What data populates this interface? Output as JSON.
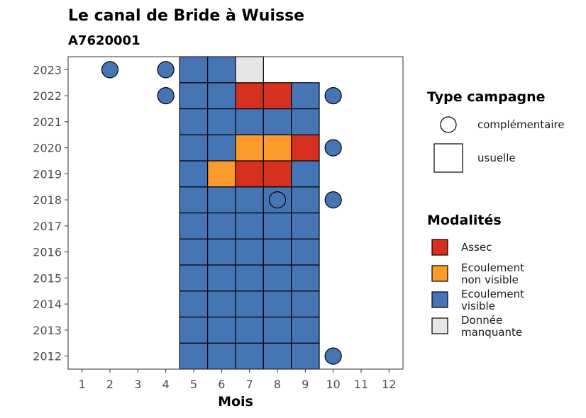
{
  "chart_data": {
    "type": "heatmap",
    "title": "Le canal de Bride à Wuisse",
    "subtitle": "A7620001",
    "xlabel": "Mois",
    "ylabel": "",
    "x_ticks": [
      1,
      2,
      3,
      4,
      5,
      6,
      7,
      8,
      9,
      10,
      11,
      12
    ],
    "y_ticks": [
      2012,
      2013,
      2014,
      2015,
      2016,
      2017,
      2018,
      2019,
      2020,
      2021,
      2022,
      2023
    ],
    "xlim": [
      0.5,
      12.5
    ],
    "ylim": [
      2011.5,
      2023.5
    ],
    "modalities": [
      {
        "key": "assec",
        "label": "Assec",
        "color": "#d7301f"
      },
      {
        "key": "non_visible",
        "label": "Ecoulement non visible",
        "color": "#fd9a2c"
      },
      {
        "key": "visible",
        "label": "Ecoulement visible",
        "color": "#4575b4"
      },
      {
        "key": "manquante",
        "label": "Donnée manquante",
        "color": "#e6e6e6"
      }
    ],
    "campaign_types": [
      {
        "key": "complementaire",
        "label": "complémentaire",
        "shape": "circle"
      },
      {
        "key": "usuelle",
        "label": "usuelle",
        "shape": "square"
      }
    ],
    "legend_titles": {
      "campaign": "Type campagne",
      "modality": "Modalités"
    },
    "legend_position": "right",
    "observations": [
      {
        "year": 2012,
        "month": 5,
        "type": "usuelle",
        "value": "visible"
      },
      {
        "year": 2012,
        "month": 6,
        "type": "usuelle",
        "value": "visible"
      },
      {
        "year": 2012,
        "month": 7,
        "type": "usuelle",
        "value": "visible"
      },
      {
        "year": 2012,
        "month": 8,
        "type": "usuelle",
        "value": "visible"
      },
      {
        "year": 2012,
        "month": 9,
        "type": "usuelle",
        "value": "visible"
      },
      {
        "year": 2012,
        "month": 10,
        "type": "complementaire",
        "value": "visible"
      },
      {
        "year": 2013,
        "month": 5,
        "type": "usuelle",
        "value": "visible"
      },
      {
        "year": 2013,
        "month": 6,
        "type": "usuelle",
        "value": "visible"
      },
      {
        "year": 2013,
        "month": 7,
        "type": "usuelle",
        "value": "visible"
      },
      {
        "year": 2013,
        "month": 8,
        "type": "usuelle",
        "value": "visible"
      },
      {
        "year": 2013,
        "month": 9,
        "type": "usuelle",
        "value": "visible"
      },
      {
        "year": 2014,
        "month": 5,
        "type": "usuelle",
        "value": "visible"
      },
      {
        "year": 2014,
        "month": 6,
        "type": "usuelle",
        "value": "visible"
      },
      {
        "year": 2014,
        "month": 7,
        "type": "usuelle",
        "value": "visible"
      },
      {
        "year": 2014,
        "month": 8,
        "type": "usuelle",
        "value": "visible"
      },
      {
        "year": 2014,
        "month": 9,
        "type": "usuelle",
        "value": "visible"
      },
      {
        "year": 2015,
        "month": 5,
        "type": "usuelle",
        "value": "visible"
      },
      {
        "year": 2015,
        "month": 6,
        "type": "usuelle",
        "value": "visible"
      },
      {
        "year": 2015,
        "month": 7,
        "type": "usuelle",
        "value": "visible"
      },
      {
        "year": 2015,
        "month": 8,
        "type": "usuelle",
        "value": "visible"
      },
      {
        "year": 2015,
        "month": 9,
        "type": "usuelle",
        "value": "visible"
      },
      {
        "year": 2016,
        "month": 5,
        "type": "usuelle",
        "value": "visible"
      },
      {
        "year": 2016,
        "month": 6,
        "type": "usuelle",
        "value": "visible"
      },
      {
        "year": 2016,
        "month": 7,
        "type": "usuelle",
        "value": "visible"
      },
      {
        "year": 2016,
        "month": 8,
        "type": "usuelle",
        "value": "visible"
      },
      {
        "year": 2016,
        "month": 9,
        "type": "usuelle",
        "value": "visible"
      },
      {
        "year": 2017,
        "month": 5,
        "type": "usuelle",
        "value": "visible"
      },
      {
        "year": 2017,
        "month": 6,
        "type": "usuelle",
        "value": "visible"
      },
      {
        "year": 2017,
        "month": 7,
        "type": "usuelle",
        "value": "visible"
      },
      {
        "year": 2017,
        "month": 8,
        "type": "usuelle",
        "value": "visible"
      },
      {
        "year": 2017,
        "month": 9,
        "type": "usuelle",
        "value": "visible"
      },
      {
        "year": 2018,
        "month": 5,
        "type": "usuelle",
        "value": "visible"
      },
      {
        "year": 2018,
        "month": 6,
        "type": "usuelle",
        "value": "visible"
      },
      {
        "year": 2018,
        "month": 7,
        "type": "usuelle",
        "value": "visible"
      },
      {
        "year": 2018,
        "month": 8,
        "type": "usuelle",
        "value": "visible"
      },
      {
        "year": 2018,
        "month": 8,
        "type": "complementaire",
        "value": "visible"
      },
      {
        "year": 2018,
        "month": 9,
        "type": "usuelle",
        "value": "visible"
      },
      {
        "year": 2018,
        "month": 10,
        "type": "complementaire",
        "value": "visible"
      },
      {
        "year": 2019,
        "month": 5,
        "type": "usuelle",
        "value": "visible"
      },
      {
        "year": 2019,
        "month": 6,
        "type": "usuelle",
        "value": "non_visible"
      },
      {
        "year": 2019,
        "month": 7,
        "type": "usuelle",
        "value": "assec"
      },
      {
        "year": 2019,
        "month": 8,
        "type": "usuelle",
        "value": "assec"
      },
      {
        "year": 2019,
        "month": 9,
        "type": "usuelle",
        "value": "visible"
      },
      {
        "year": 2020,
        "month": 5,
        "type": "usuelle",
        "value": "visible"
      },
      {
        "year": 2020,
        "month": 6,
        "type": "usuelle",
        "value": "visible"
      },
      {
        "year": 2020,
        "month": 7,
        "type": "usuelle",
        "value": "non_visible"
      },
      {
        "year": 2020,
        "month": 8,
        "type": "usuelle",
        "value": "non_visible"
      },
      {
        "year": 2020,
        "month": 9,
        "type": "usuelle",
        "value": "assec"
      },
      {
        "year": 2020,
        "month": 10,
        "type": "complementaire",
        "value": "visible"
      },
      {
        "year": 2021,
        "month": 5,
        "type": "usuelle",
        "value": "visible"
      },
      {
        "year": 2021,
        "month": 6,
        "type": "usuelle",
        "value": "visible"
      },
      {
        "year": 2021,
        "month": 7,
        "type": "usuelle",
        "value": "visible"
      },
      {
        "year": 2021,
        "month": 8,
        "type": "usuelle",
        "value": "visible"
      },
      {
        "year": 2021,
        "month": 9,
        "type": "usuelle",
        "value": "visible"
      },
      {
        "year": 2022,
        "month": 4,
        "type": "complementaire",
        "value": "visible"
      },
      {
        "year": 2022,
        "month": 5,
        "type": "usuelle",
        "value": "visible"
      },
      {
        "year": 2022,
        "month": 6,
        "type": "usuelle",
        "value": "visible"
      },
      {
        "year": 2022,
        "month": 7,
        "type": "usuelle",
        "value": "assec"
      },
      {
        "year": 2022,
        "month": 8,
        "type": "usuelle",
        "value": "assec"
      },
      {
        "year": 2022,
        "month": 9,
        "type": "usuelle",
        "value": "visible"
      },
      {
        "year": 2022,
        "month": 10,
        "type": "complementaire",
        "value": "visible"
      },
      {
        "year": 2023,
        "month": 2,
        "type": "complementaire",
        "value": "visible"
      },
      {
        "year": 2023,
        "month": 4,
        "type": "complementaire",
        "value": "visible"
      },
      {
        "year": 2023,
        "month": 5,
        "type": "usuelle",
        "value": "visible"
      },
      {
        "year": 2023,
        "month": 6,
        "type": "usuelle",
        "value": "visible"
      },
      {
        "year": 2023,
        "month": 7,
        "type": "usuelle",
        "value": "manquante"
      }
    ]
  }
}
